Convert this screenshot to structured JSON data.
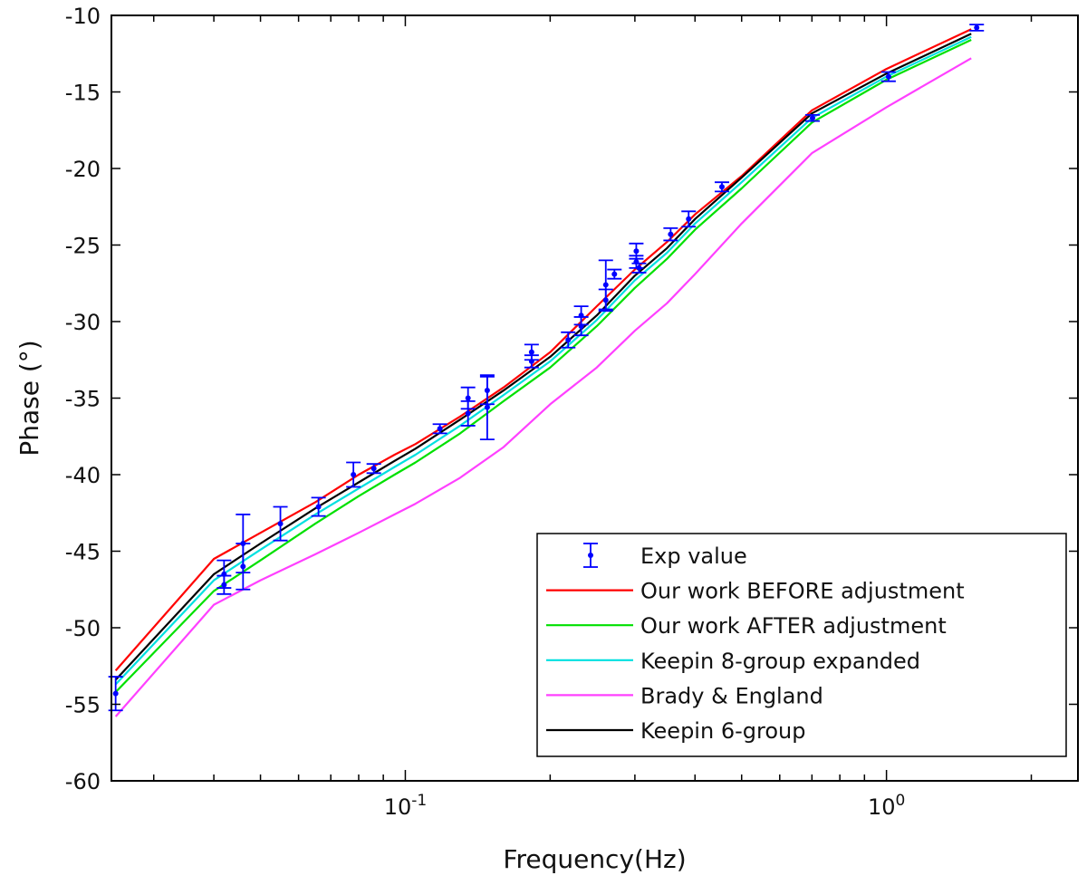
{
  "chart_data": {
    "type": "line",
    "xlabel": "Frequency(Hz)",
    "ylabel": "Phase (°)",
    "x_scale": "log",
    "xlim": [
      0.0245,
      2.5
    ],
    "ylim": [
      -60,
      -10
    ],
    "yticks": [
      "-60",
      "-55",
      "-50",
      "-45",
      "-40",
      "-35",
      "-30",
      "-25",
      "-20",
      "-15",
      "-10"
    ],
    "xticks": [
      {
        "value": 0.1,
        "base": "10",
        "exp": "-1"
      },
      {
        "value": 1,
        "base": "10",
        "exp": "0"
      }
    ],
    "grid": false,
    "legend_position": "bottom-right",
    "series": [
      {
        "name": "Our work BEFORE adjustment",
        "color": "#ff0000",
        "x": [
          0.025,
          0.04,
          0.05,
          0.065,
          0.08,
          0.095,
          0.105,
          0.13,
          0.16,
          0.2,
          0.25,
          0.3,
          0.35,
          0.4,
          0.5,
          0.7,
          1.0,
          1.5
        ],
        "y": [
          -52.8,
          -45.5,
          -43.8,
          -41.8,
          -40.0,
          -38.7,
          -38.0,
          -36.2,
          -34.3,
          -32.0,
          -29.0,
          -26.6,
          -24.8,
          -23.0,
          -20.5,
          -16.2,
          -13.5,
          -10.9
        ]
      },
      {
        "name": "Our work AFTER adjustment",
        "color": "#00e000",
        "x": [
          0.025,
          0.04,
          0.05,
          0.065,
          0.08,
          0.095,
          0.105,
          0.13,
          0.16,
          0.2,
          0.25,
          0.3,
          0.35,
          0.4,
          0.5,
          0.7,
          1.0,
          1.5
        ],
        "y": [
          -54.2,
          -47.6,
          -45.6,
          -43.2,
          -41.4,
          -40.0,
          -39.2,
          -37.3,
          -35.2,
          -33.0,
          -30.3,
          -27.8,
          -25.9,
          -24.0,
          -21.3,
          -17.0,
          -14.2,
          -11.6
        ]
      },
      {
        "name": "Keepin 8-group expanded",
        "color": "#00e0e0",
        "x": [
          0.025,
          0.04,
          0.05,
          0.065,
          0.08,
          0.095,
          0.105,
          0.13,
          0.16,
          0.2,
          0.25,
          0.3,
          0.35,
          0.4,
          0.5,
          0.7,
          1.0,
          1.5
        ],
        "y": [
          -53.7,
          -46.9,
          -44.9,
          -42.6,
          -40.9,
          -39.5,
          -38.7,
          -36.8,
          -34.8,
          -32.6,
          -29.9,
          -27.3,
          -25.5,
          -23.6,
          -20.9,
          -16.7,
          -14.0,
          -11.4
        ]
      },
      {
        "name": "Brady & England",
        "color": "#ff40ff",
        "x": [
          0.025,
          0.04,
          0.05,
          0.065,
          0.08,
          0.095,
          0.105,
          0.13,
          0.16,
          0.2,
          0.25,
          0.3,
          0.35,
          0.4,
          0.5,
          0.7,
          1.0,
          1.5
        ],
        "y": [
          -55.8,
          -48.5,
          -46.9,
          -45.2,
          -43.8,
          -42.6,
          -41.9,
          -40.2,
          -38.2,
          -35.4,
          -33.0,
          -30.6,
          -28.8,
          -26.9,
          -23.6,
          -19.0,
          -16.0,
          -12.8
        ]
      },
      {
        "name": "Keepin 6-group",
        "color": "#000000",
        "x": [
          0.025,
          0.04,
          0.05,
          0.065,
          0.08,
          0.095,
          0.105,
          0.13,
          0.16,
          0.2,
          0.25,
          0.3,
          0.35,
          0.4,
          0.5,
          0.7,
          1.0,
          1.5
        ],
        "y": [
          -53.4,
          -46.5,
          -44.5,
          -42.2,
          -40.5,
          -39.1,
          -38.3,
          -36.4,
          -34.5,
          -32.3,
          -29.6,
          -27.0,
          -25.2,
          -23.3,
          -20.6,
          -16.4,
          -13.8,
          -11.2
        ]
      }
    ],
    "exp_data": {
      "name": "Exp value",
      "color": "#0000ff",
      "points": [
        {
          "x": 0.025,
          "y": -54.3,
          "err": 1.1
        },
        {
          "x": 0.042,
          "y": -46.5,
          "err": 0.9
        },
        {
          "x": 0.042,
          "y": -47.2,
          "err": 0.6
        },
        {
          "x": 0.046,
          "y": -44.5,
          "err": 1.9
        },
        {
          "x": 0.046,
          "y": -46.0,
          "err": 1.5
        },
        {
          "x": 0.055,
          "y": -43.2,
          "err": 1.1
        },
        {
          "x": 0.066,
          "y": -42.1,
          "err": 0.6
        },
        {
          "x": 0.078,
          "y": -40.0,
          "err": 0.8
        },
        {
          "x": 0.086,
          "y": -39.6,
          "err": 0.3
        },
        {
          "x": 0.118,
          "y": -37.0,
          "err": 0.3
        },
        {
          "x": 0.135,
          "y": -35.0,
          "err": 0.7
        },
        {
          "x": 0.135,
          "y": -36.0,
          "err": 0.8
        },
        {
          "x": 0.148,
          "y": -34.5,
          "err": 0.9
        },
        {
          "x": 0.148,
          "y": -35.6,
          "err": 2.1
        },
        {
          "x": 0.183,
          "y": -32.0,
          "err": 0.5
        },
        {
          "x": 0.183,
          "y": -32.6,
          "err": 0.4
        },
        {
          "x": 0.218,
          "y": -31.2,
          "err": 0.5
        },
        {
          "x": 0.232,
          "y": -29.6,
          "err": 0.6
        },
        {
          "x": 0.232,
          "y": -30.3,
          "err": 0.6
        },
        {
          "x": 0.261,
          "y": -27.6,
          "err": 1.6
        },
        {
          "x": 0.261,
          "y": -28.6,
          "err": 0.7
        },
        {
          "x": 0.272,
          "y": -26.9,
          "err": 0.3
        },
        {
          "x": 0.302,
          "y": -25.4,
          "err": 0.5
        },
        {
          "x": 0.302,
          "y": -26.1,
          "err": 0.4
        },
        {
          "x": 0.306,
          "y": -26.5,
          "err": 0.3
        },
        {
          "x": 0.356,
          "y": -24.3,
          "err": 0.4
        },
        {
          "x": 0.388,
          "y": -23.3,
          "err": 0.5
        },
        {
          "x": 0.455,
          "y": -21.2,
          "err": 0.3
        },
        {
          "x": 0.702,
          "y": -16.7,
          "err": 0.2
        },
        {
          "x": 1.01,
          "y": -14.0,
          "err": 0.3
        },
        {
          "x": 1.54,
          "y": -10.8,
          "err": 0.2
        }
      ]
    },
    "legend_order": [
      "Exp value",
      "Our work BEFORE adjustment",
      "Our work AFTER adjustment",
      "Keepin 8-group expanded",
      "Brady & England",
      "Keepin 6-group"
    ]
  }
}
